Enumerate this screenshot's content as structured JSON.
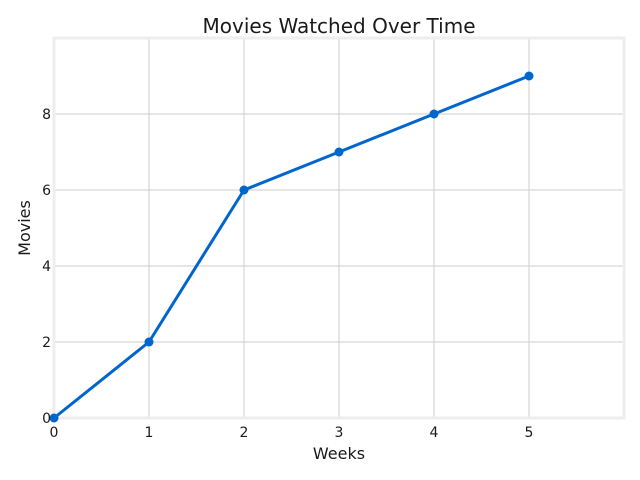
{
  "chart_data": {
    "type": "line",
    "title": "Movies Watched Over Time",
    "xlabel": "Weeks",
    "ylabel": "Movies",
    "x": [
      0,
      1,
      2,
      3,
      4,
      5
    ],
    "series": [
      {
        "values": [
          0,
          2,
          6,
          7,
          8,
          9
        ],
        "color": "#0066cc",
        "marker": "circle"
      }
    ],
    "xlim": [
      0,
      6
    ],
    "ylim": [
      0,
      10
    ],
    "xticks": [
      0,
      1,
      2,
      3,
      4,
      5
    ],
    "yticks": [
      0,
      2,
      4,
      6,
      8
    ],
    "grid": true,
    "legend": false
  }
}
